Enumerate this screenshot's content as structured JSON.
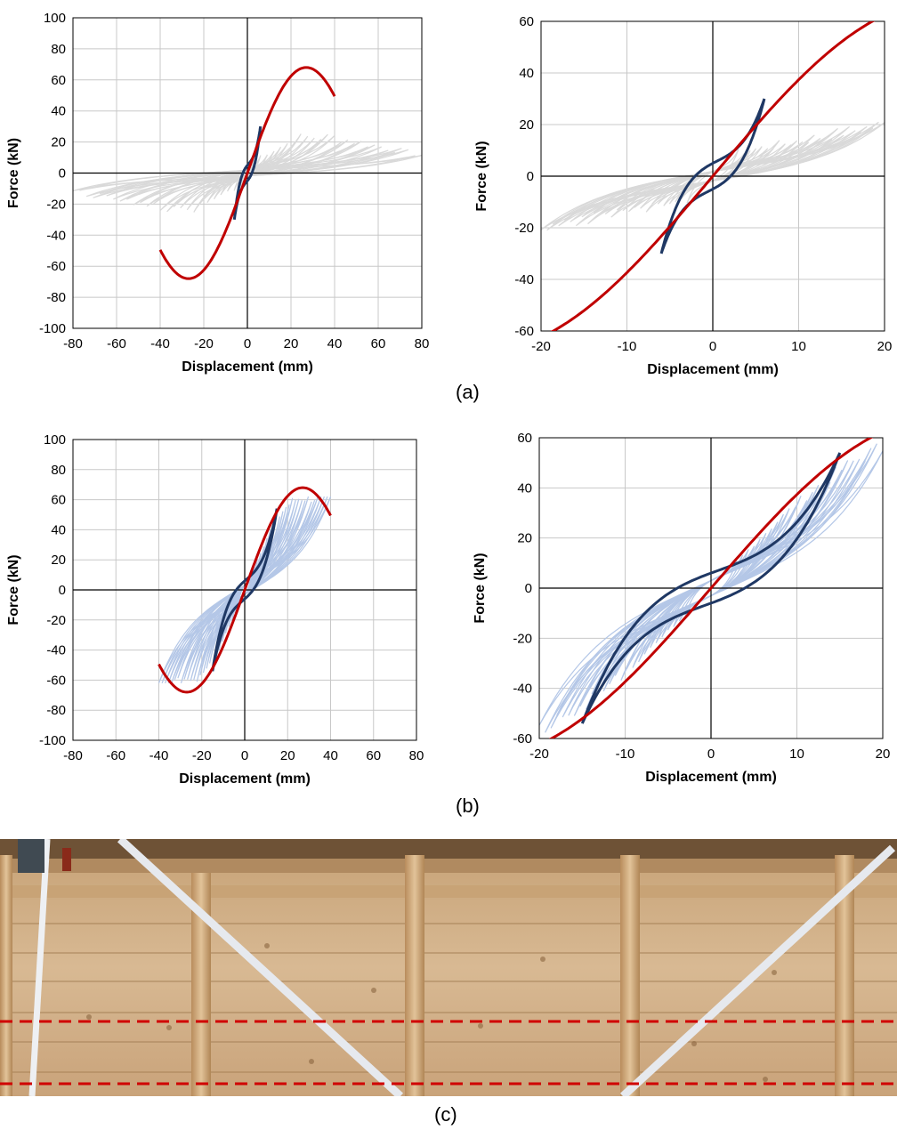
{
  "captions": {
    "a": "(a)",
    "b": "(b)",
    "c": "(c)"
  },
  "colors": {
    "backbone": "#c00000",
    "fitted_loop": "#1f3864",
    "test_gray": "#d9d9d9",
    "test_blue": "#b4c7e7",
    "grid": "#c8c8c8",
    "photo_dashed": "#d00000"
  },
  "chart_data": [
    {
      "id": "a_full",
      "type": "line",
      "xlabel": "Displacement (mm)",
      "ylabel": "Force (kN)",
      "xlim": [
        -80,
        80
      ],
      "ylim": [
        -100,
        100
      ],
      "xticks": [
        "-80",
        "-60",
        "-40",
        "-20",
        "0",
        "20",
        "40",
        "60",
        "80"
      ],
      "yticks": [
        "-100",
        "-80",
        "-60",
        "-40",
        "-20",
        "0",
        "20",
        "40",
        "60",
        "80",
        "100"
      ],
      "grid": true,
      "backbone": {
        "peak_force": 68,
        "peak_disp": 27,
        "range": [
          -40,
          40
        ]
      },
      "loop": {
        "disp_amp": 6,
        "force_amp": 30,
        "zero_intercept": 5
      },
      "test_data": {
        "color": "test_gray",
        "min_disp": -80,
        "max_disp": 80,
        "min_force": -22,
        "max_force": 25
      }
    },
    {
      "id": "a_zoom",
      "type": "line",
      "xlabel": "Displacement (mm)",
      "ylabel": "Force (kN)",
      "xlim": [
        -20,
        20
      ],
      "ylim": [
        -60,
        60
      ],
      "xticks": [
        "-20",
        "-10",
        "0",
        "10",
        "20"
      ],
      "yticks": [
        "-60",
        "-40",
        "-20",
        "0",
        "20",
        "40",
        "60"
      ],
      "grid": true,
      "backbone": {
        "peak_force": 68,
        "peak_disp": 27,
        "range": [
          -20,
          20
        ]
      },
      "loop": {
        "disp_amp": 6,
        "force_amp": 30,
        "zero_intercept": 5
      },
      "test_data": {
        "color": "test_gray",
        "min_disp": -20,
        "max_disp": 20,
        "min_force": -22,
        "max_force": 25
      }
    },
    {
      "id": "b_full",
      "type": "line",
      "xlabel": "Displacement (mm)",
      "ylabel": "Force (kN)",
      "xlim": [
        -80,
        80
      ],
      "ylim": [
        -100,
        100
      ],
      "xticks": [
        "-80",
        "-60",
        "-40",
        "-20",
        "0",
        "20",
        "40",
        "60",
        "80"
      ],
      "yticks": [
        "-100",
        "-80",
        "-60",
        "-40",
        "-20",
        "0",
        "20",
        "40",
        "60",
        "80",
        "100"
      ],
      "grid": true,
      "backbone": {
        "peak_force": 68,
        "peak_disp": 27,
        "range": [
          -40,
          40
        ]
      },
      "loop": {
        "disp_amp": 15,
        "force_amp": 54,
        "zero_intercept": 6
      },
      "test_data": {
        "color": "test_blue",
        "min_disp": -40,
        "max_disp": 40,
        "min_force": -60,
        "max_force": 62
      }
    },
    {
      "id": "b_zoom",
      "type": "line",
      "xlabel": "Displacement (mm)",
      "ylabel": "Force (kN)",
      "xlim": [
        -20,
        20
      ],
      "ylim": [
        -60,
        60
      ],
      "xticks": [
        "-20",
        "-10",
        "0",
        "10",
        "20"
      ],
      "yticks": [
        "-60",
        "-40",
        "-20",
        "0",
        "20",
        "40",
        "60"
      ],
      "grid": true,
      "backbone": {
        "peak_force": 68,
        "peak_disp": 27,
        "range": [
          -20,
          20
        ]
      },
      "loop": {
        "disp_amp": 15,
        "force_amp": 54,
        "zero_intercept": 6
      },
      "test_data": {
        "color": "test_blue",
        "min_disp": -20,
        "max_disp": 20,
        "min_force": -60,
        "max_force": 62
      }
    }
  ]
}
